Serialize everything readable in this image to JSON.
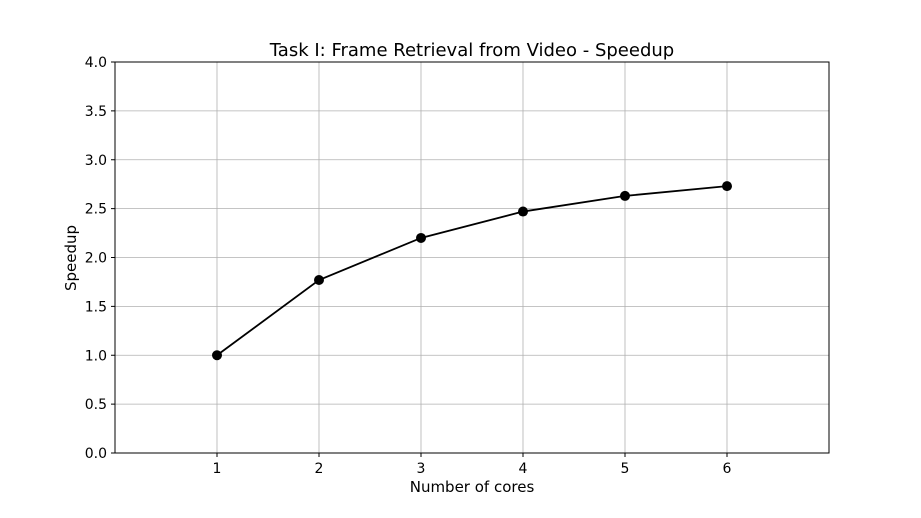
{
  "chart_data": {
    "type": "line",
    "title": "Task I: Frame Retrieval from Video - Speedup",
    "xlabel": "Number of cores",
    "ylabel": "Speedup",
    "x": [
      1,
      2,
      3,
      4,
      5,
      6
    ],
    "series": [
      {
        "values": [
          1.0,
          1.77,
          2.2,
          2.47,
          2.63,
          2.73
        ],
        "color": "#000000",
        "marker": "circle"
      }
    ],
    "xlim": [
      0,
      7
    ],
    "ylim": [
      0,
      4
    ],
    "xticks": [
      1,
      2,
      3,
      4,
      5,
      6
    ],
    "yticks": [
      "0.0",
      "0.5",
      "1.0",
      "1.5",
      "2.0",
      "2.5",
      "3.0",
      "3.5",
      "4.0"
    ],
    "grid": true,
    "legend": "none"
  }
}
